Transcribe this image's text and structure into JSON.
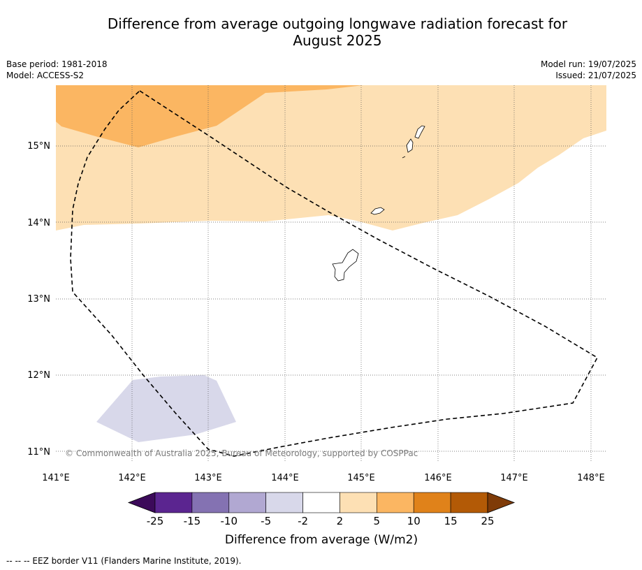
{
  "title_line1": "Difference from average outgoing longwave radiation forecast for",
  "title_line2": "August 2025",
  "base_period": "Base period: 1981-2018",
  "model": "Model: ACCESS-S2",
  "model_run": "Model run: 19/07/2025",
  "issued": "Issued: 21/07/2025",
  "lat_labels": [
    "15°N",
    "14°N",
    "13°N",
    "12°N",
    "11°N"
  ],
  "lon_labels": [
    "141°E",
    "142°E",
    "143°E",
    "144°E",
    "145°E",
    "146°E",
    "147°E",
    "148°E"
  ],
  "copyright": "© Commonwealth of Australia 2025, Bureau of Meteorology, supported by COSPPac",
  "colorbar": {
    "title": "Difference from average (W/m2)",
    "labels": [
      "-25",
      "-15",
      "-10",
      "-5",
      "-2",
      "2",
      "5",
      "10",
      "15",
      "25"
    ],
    "colors": [
      "#3c0a5a",
      "#5b2590",
      "#8472b2",
      "#b1a8d2",
      "#d8d8ea",
      "#ffffff",
      "#fde0b4",
      "#fbb662",
      "#e0821a",
      "#b35a06",
      "#7f3b08"
    ]
  },
  "footnote": "--  --  -- EEZ border V11 (Flanders Marine Institute, 2019)."
}
